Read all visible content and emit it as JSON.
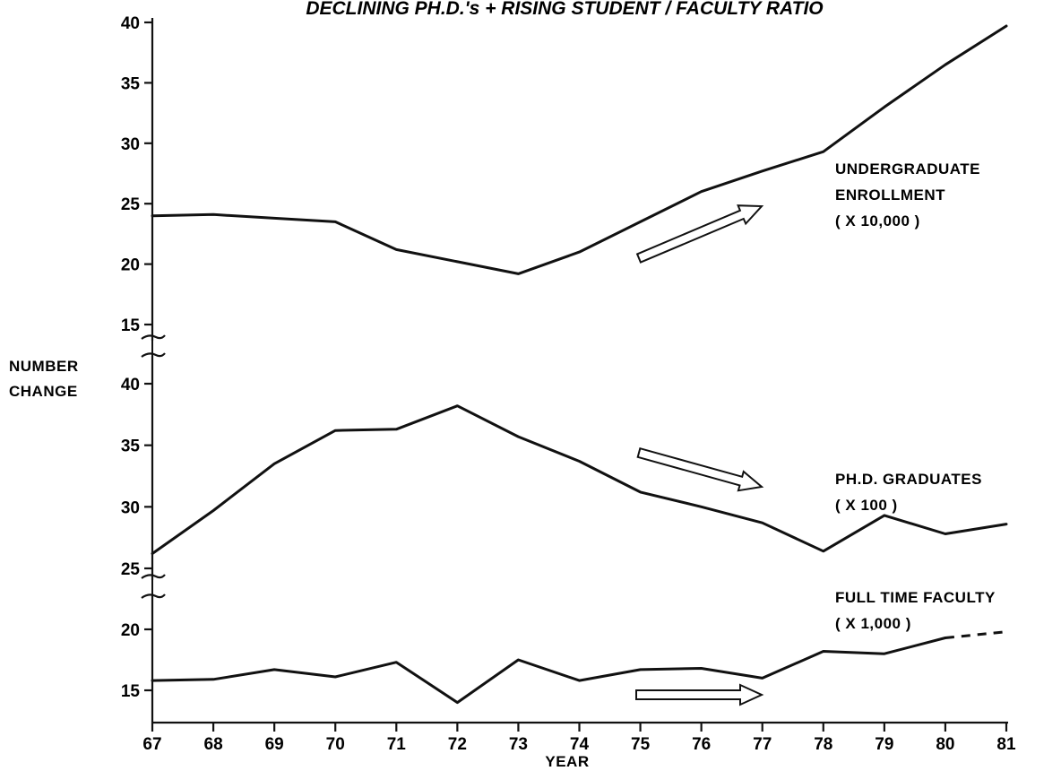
{
  "chart_data": {
    "type": "line",
    "title": "DECLINING PH.D.'s + RISING STUDENT / FACULTY RATIO",
    "xlabel": "YEAR",
    "ylabel": [
      "NUMBER",
      "CHANGE"
    ],
    "x": [
      "67",
      "68",
      "69",
      "70",
      "71",
      "72",
      "73",
      "74",
      "75",
      "76",
      "77",
      "78",
      "79",
      "80",
      "81"
    ],
    "grid": false,
    "panels": [
      {
        "ticks": [
          "15",
          "20",
          "25",
          "30",
          "35",
          "40"
        ],
        "ylim": [
          14,
          40
        ],
        "series": [
          {
            "label": [
              "UNDERGRADUATE",
              "ENROLLMENT",
              "( X 10,000 )"
            ],
            "arrow": "up",
            "points": [
              [
                67,
                24.0
              ],
              [
                68,
                24.1
              ],
              [
                69,
                23.8
              ],
              [
                70,
                23.5
              ],
              [
                71,
                21.2
              ],
              [
                72,
                20.2
              ],
              [
                73,
                19.2
              ],
              [
                74,
                21.0
              ],
              [
                75,
                23.5
              ],
              [
                76,
                26.0
              ],
              [
                77,
                27.7
              ],
              [
                78,
                29.3
              ],
              [
                79,
                33.0
              ],
              [
                80,
                36.5
              ],
              [
                81,
                39.7
              ]
            ]
          }
        ]
      },
      {
        "ticks": [
          "25",
          "30",
          "35",
          "40"
        ],
        "ylim": [
          24,
          40
        ],
        "series": [
          {
            "label": [
              "PH.D. GRADUATES",
              "( X 100 )"
            ],
            "arrow": "down",
            "points": [
              [
                67,
                26.2
              ],
              [
                68,
                29.7
              ],
              [
                69,
                33.5
              ],
              [
                70,
                36.2
              ],
              [
                71,
                36.3
              ],
              [
                72,
                38.2
              ],
              [
                73,
                35.7
              ],
              [
                74,
                33.7
              ],
              [
                75,
                31.2
              ],
              [
                76,
                30.0
              ],
              [
                77,
                28.7
              ],
              [
                78,
                26.4
              ],
              [
                79,
                29.3
              ],
              [
                80,
                27.8
              ],
              [
                81,
                28.6
              ]
            ]
          }
        ]
      },
      {
        "ticks": [
          "15",
          "20"
        ],
        "ylim": [
          12.5,
          22.5
        ],
        "series": [
          {
            "label": [
              "FULL TIME FACULTY",
              "( X 1,000 )"
            ],
            "arrow": "flat",
            "points": [
              [
                67,
                15.8
              ],
              [
                68,
                15.9
              ],
              [
                69,
                16.7
              ],
              [
                70,
                16.1
              ],
              [
                71,
                17.3
              ],
              [
                72,
                14.0
              ],
              [
                73,
                17.5
              ],
              [
                74,
                15.8
              ],
              [
                75,
                16.7
              ],
              [
                76,
                16.8
              ],
              [
                77,
                16.0
              ],
              [
                78,
                18.2
              ],
              [
                79,
                18.0
              ],
              [
                80,
                19.3
              ]
            ],
            "projected": [
              [
                80,
                19.3
              ],
              [
                81,
                19.8
              ]
            ]
          }
        ]
      }
    ]
  }
}
